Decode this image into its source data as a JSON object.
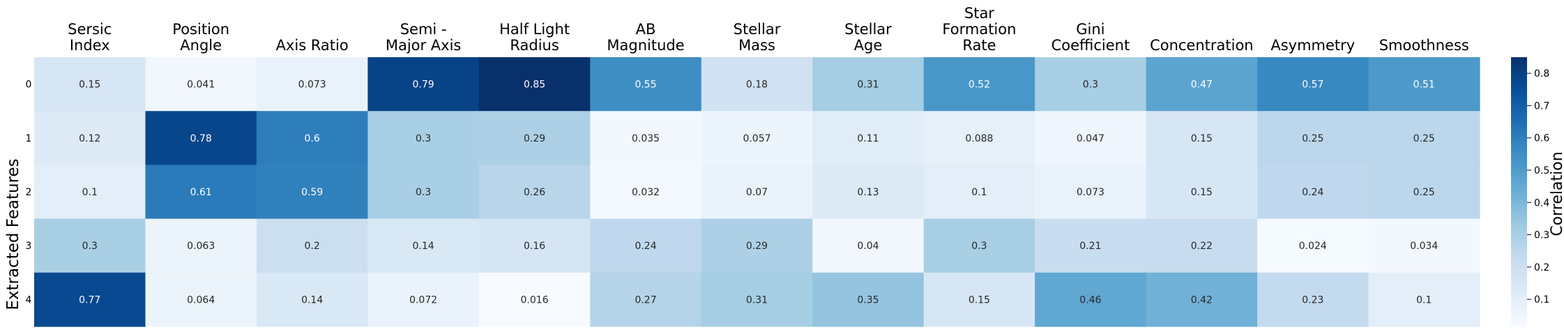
{
  "chart_data": {
    "type": "heatmap",
    "columns": [
      [
        "Sersic",
        "Index"
      ],
      [
        "Position",
        "Angle"
      ],
      [
        "Axis Ratio"
      ],
      [
        "Semi -",
        "Major Axis"
      ],
      [
        "Half Light",
        "Radius"
      ],
      [
        "AB",
        "Magnitude"
      ],
      [
        "Stellar",
        "Mass"
      ],
      [
        "Stellar",
        "Age"
      ],
      [
        "Star",
        "Formation",
        "Rate"
      ],
      [
        "Gini",
        "Coefficient"
      ],
      [
        "Concentration"
      ],
      [
        "Asymmetry"
      ],
      [
        "Smoothness"
      ]
    ],
    "rows": [
      "0",
      "1",
      "2",
      "3",
      "4"
    ],
    "values": [
      [
        0.15,
        0.041,
        0.073,
        0.79,
        0.85,
        0.55,
        0.18,
        0.31,
        0.52,
        0.3,
        0.47,
        0.57,
        0.51
      ],
      [
        0.12,
        0.78,
        0.6,
        0.3,
        0.29,
        0.035,
        0.057,
        0.11,
        0.088,
        0.047,
        0.15,
        0.25,
        0.25
      ],
      [
        0.1,
        0.61,
        0.59,
        0.3,
        0.26,
        0.032,
        0.07,
        0.13,
        0.1,
        0.073,
        0.15,
        0.24,
        0.25
      ],
      [
        0.3,
        0.063,
        0.2,
        0.14,
        0.16,
        0.24,
        0.29,
        0.04,
        0.3,
        0.21,
        0.22,
        0.024,
        0.034
      ],
      [
        0.77,
        0.064,
        0.14,
        0.072,
        0.016,
        0.27,
        0.31,
        0.35,
        0.15,
        0.46,
        0.42,
        0.23,
        0.1
      ]
    ],
    "ylabel": "Extracted Features",
    "colorbar": {
      "label": "Correlation",
      "ticks": [
        "0.1",
        "0.2",
        "0.3",
        "0.4",
        "0.5",
        "0.6",
        "0.7",
        "0.8"
      ],
      "tick_values": [
        0.1,
        0.2,
        0.3,
        0.4,
        0.5,
        0.6,
        0.7,
        0.8
      ],
      "range": [
        0.016,
        0.85
      ]
    },
    "colormap": "Blues",
    "colormap_stops": [
      "#f7fbff",
      "#deebf7",
      "#c6dbef",
      "#9ecae1",
      "#6baed6",
      "#4292c6",
      "#2171b5",
      "#08519c",
      "#08306b"
    ]
  }
}
